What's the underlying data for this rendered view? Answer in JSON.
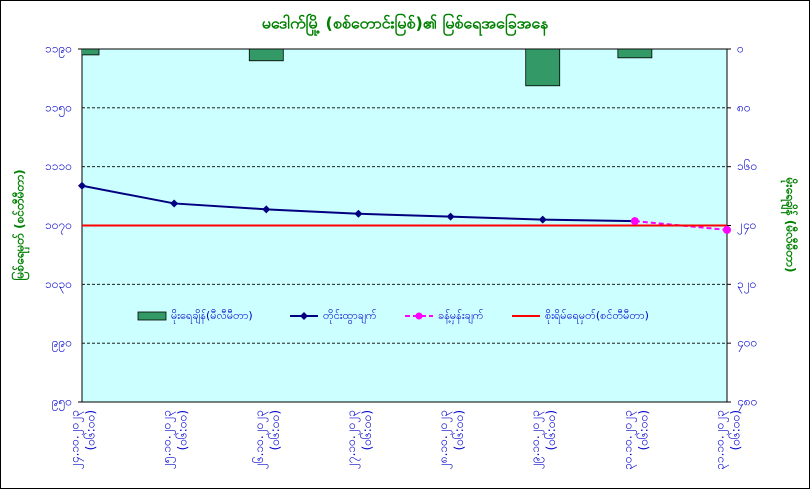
{
  "chart_data": {
    "type": "combo",
    "title": "မဒေါက်မြို့ (စစ်တောင်းမြစ်)၏ မြစ်ရေအခြေအနေ",
    "y_label": "မြစ်ရေမှတ် (စင်တီမီတာ)",
    "y2_label": "မိုးရေချိန် (မီလီမီတာ)",
    "categories": [
      "၂၄.၁၀.၂၀၂၃",
      "၂၅.၁၀.၂၀၂၃",
      "၂၆.၁၀.၂၀၂၃",
      "၂၇.၁၀.၂၀၂၃",
      "၂၈.၁၀.၂၀၂၃",
      "၂၉.၁၀.၂၀၂၃",
      "၃၀.၁၀.၂၀၂၃",
      "၃၁.၁၀.၂၀၂၃"
    ],
    "category_times": [
      "(၀၆:၀၀)",
      "(၀၆:၀၀)",
      "(၀၆:၀၀)",
      "(၀၆:၀၀)",
      "(၀၆:၀၀)",
      "(၀၆:၀၀)",
      "(၀၆:၀၀)",
      "(၀၆:၀၀)"
    ],
    "ylim": [
      950,
      1190
    ],
    "yticks": [
      {
        "value": 950,
        "label": "၉၅၀"
      },
      {
        "value": 990,
        "label": "၉၉၀"
      },
      {
        "value": 1030,
        "label": "၁၀၃၀"
      },
      {
        "value": 1070,
        "label": "၁၀၇၀"
      },
      {
        "value": 1110,
        "label": "၁၁၁၀"
      },
      {
        "value": 1150,
        "label": "၁၁၅၀"
      },
      {
        "value": 1190,
        "label": "၁၁၉၀"
      }
    ],
    "y2lim": [
      480,
      0
    ],
    "y2ticks": [
      {
        "value": 0,
        "label": "၀"
      },
      {
        "value": 80,
        "label": "၈၀"
      },
      {
        "value": 160,
        "label": "၁၆၀"
      },
      {
        "value": 240,
        "label": "၂၄၀"
      },
      {
        "value": 320,
        "label": "၃၂၀"
      },
      {
        "value": 400,
        "label": "၄၀၀"
      },
      {
        "value": 480,
        "label": "၄၈၀"
      }
    ],
    "grid": true,
    "series": [
      {
        "name": "မိုးရေချိန်(မီလီမီတာ)",
        "kind": "bar",
        "axis": "y2",
        "color": "#339966",
        "values": [
          8,
          0,
          16,
          0,
          0,
          50,
          12,
          0
        ]
      },
      {
        "name": "တိုင်းထွာချက်",
        "kind": "line",
        "color": "#000080",
        "values": [
          1097,
          1085,
          1081,
          1078,
          1076,
          1074,
          1073,
          null
        ]
      },
      {
        "name": "ခန့်မှန်းချက်",
        "kind": "dashed",
        "color": "#ff00ff",
        "values": [
          null,
          null,
          null,
          null,
          null,
          null,
          1073,
          1067
        ]
      },
      {
        "name": "စိုးရိမ်ရေမှတ်(စင်တီမီတာ)",
        "kind": "plain",
        "color": "#ff0000",
        "values": [
          1070,
          1070,
          1070,
          1070,
          1070,
          1070,
          1070,
          1070
        ]
      }
    ]
  }
}
